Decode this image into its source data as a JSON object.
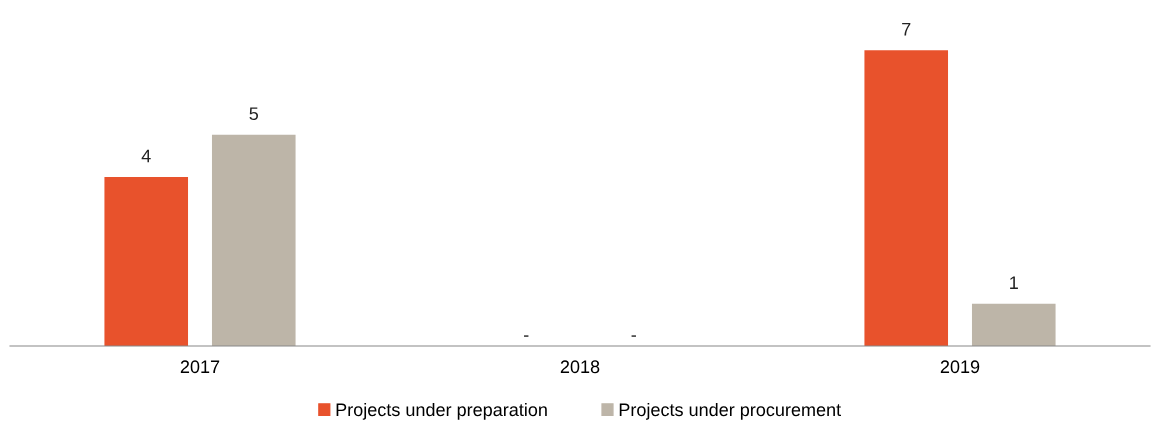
{
  "chart_data": {
    "type": "bar",
    "categories": [
      "2017",
      "2018",
      "2019"
    ],
    "series": [
      {
        "name": "Projects under preparation",
        "color": "#e8522c",
        "values": [
          4,
          null,
          7
        ],
        "value_labels": [
          "4",
          "-",
          "7"
        ]
      },
      {
        "name": "Projects under procurement",
        "color": "#bdb5a8",
        "values": [
          5,
          null,
          1
        ],
        "value_labels": [
          "5",
          "-",
          "1"
        ]
      }
    ],
    "legend": "bottom",
    "grid": false
  }
}
